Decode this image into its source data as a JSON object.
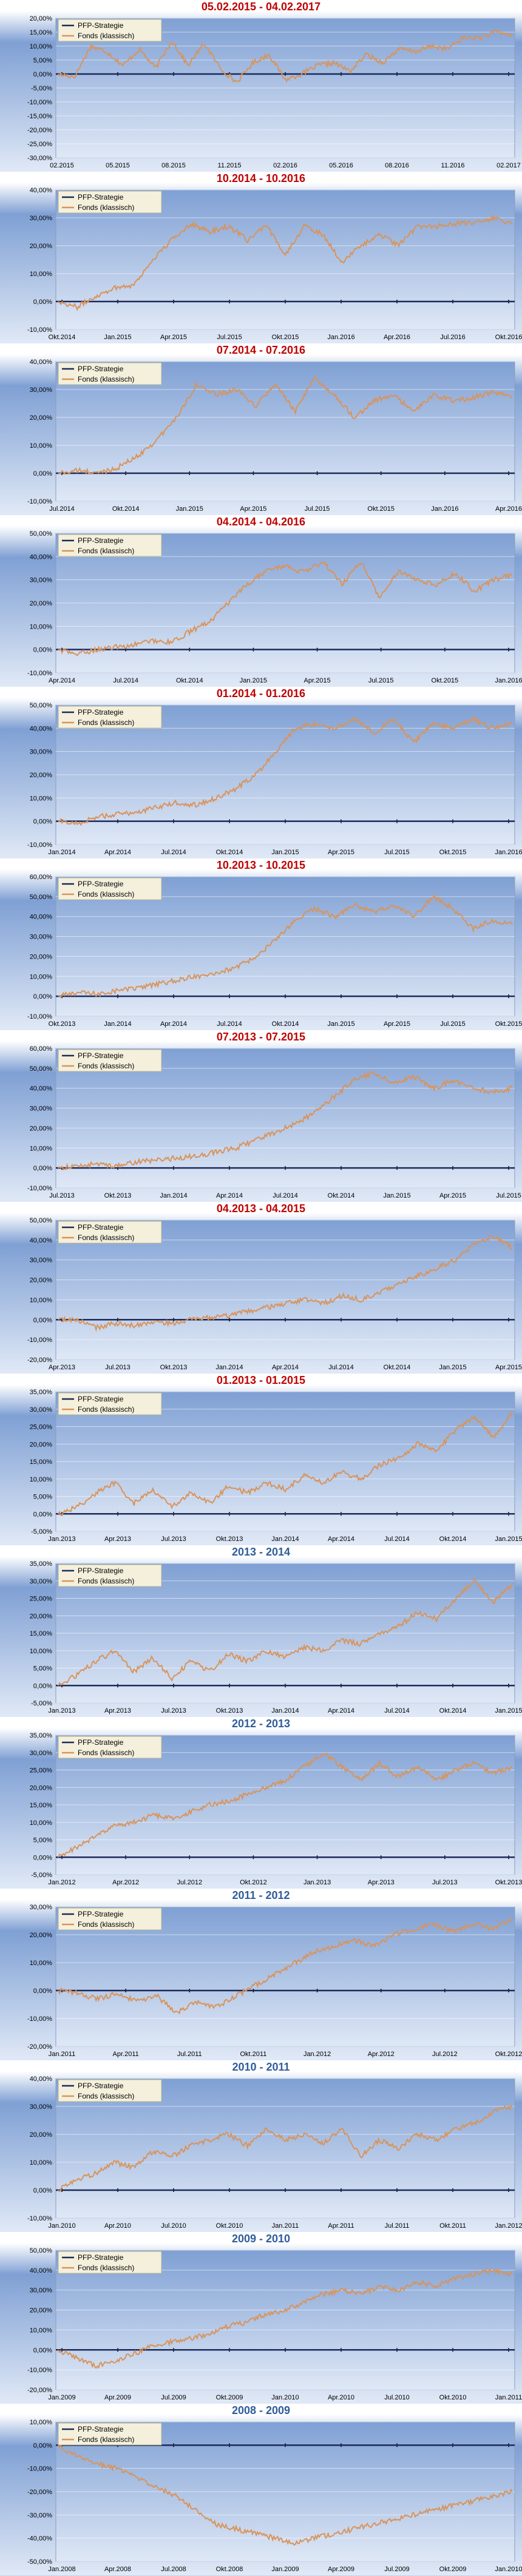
{
  "colors": {
    "title_red": "#c00000",
    "title_blue": "#2e5c9a",
    "fund_line": "#d9935a",
    "strategy_line": "#1a2a5a",
    "plot_top": "#7fa0d4",
    "plot_bottom": "#dfe8f6"
  },
  "legend": {
    "strategy": "PFP-Strategie",
    "fund": "Fonds (klassisch)"
  },
  "chart_data": [
    {
      "type": "line",
      "title": "05.02.2015 - 04.02.2017",
      "title_color": "red",
      "ylim": [
        -30,
        20
      ],
      "ystep": 5,
      "yticks": [
        "20,00%",
        "15,00%",
        "10,00%",
        "5,00%",
        "0,00%",
        "-5,00%",
        "-10,00%",
        "-15,00%",
        "-20,00%",
        "-25,00%",
        "-30,00%"
      ],
      "xticks": [
        "02.2015",
        "05.2015",
        "08.2015",
        "11.2015",
        "02.2016",
        "05.2016",
        "08.2016",
        "11.2016",
        "02.2017"
      ],
      "fund_keypoints": [
        0,
        -1,
        10,
        8,
        3,
        9,
        2,
        12,
        3,
        11,
        2,
        -3,
        4,
        7,
        -2,
        0,
        3,
        4,
        1,
        7,
        4,
        9,
        8,
        10,
        9,
        13,
        13,
        15,
        14
      ],
      "legend_position": "top-left",
      "grid": true
    },
    {
      "type": "line",
      "title": "10.2014 - 10.2016",
      "title_color": "red",
      "ylim": [
        -10,
        40
      ],
      "ystep": 10,
      "yticks": [
        "40,00%",
        "30,00%",
        "20,00%",
        "10,00%",
        "0,00%",
        "-10,00%"
      ],
      "xticks": [
        "Okt.2014",
        "Jan.2015",
        "Apr.2015",
        "Jul.2015",
        "Okt.2015",
        "Jan.2016",
        "Apr.2016",
        "Jul.2016",
        "Okt.2016"
      ],
      "fund_keypoints": [
        0,
        -2,
        2,
        5,
        6,
        15,
        22,
        28,
        25,
        27,
        22,
        27,
        17,
        27,
        24,
        14,
        20,
        24,
        20,
        27,
        27,
        28,
        28,
        30,
        28
      ],
      "legend_position": "top-left",
      "grid": true
    },
    {
      "type": "line",
      "title": "07.2014 - 07.2016",
      "title_color": "red",
      "ylim": [
        -10,
        40
      ],
      "ystep": 10,
      "yticks": [
        "40,00%",
        "30,00%",
        "20,00%",
        "10,00%",
        "0,00%",
        "-10,00%"
      ],
      "xticks": [
        "Jul.2014",
        "Okt.2014",
        "Jan.2015",
        "Apr.2015",
        "Jul.2015",
        "Okt.2015",
        "Jan.2016",
        "Apr.2016"
      ],
      "fund_keypoints": [
        0,
        1,
        0,
        2,
        6,
        12,
        20,
        32,
        28,
        30,
        24,
        32,
        22,
        34,
        28,
        20,
        26,
        28,
        22,
        28,
        26,
        27,
        29,
        27
      ],
      "legend_position": "top-left",
      "grid": true
    },
    {
      "type": "line",
      "title": "04.2014 - 04.2016",
      "title_color": "red",
      "ylim": [
        -10,
        50
      ],
      "ystep": 10,
      "yticks": [
        "50,00%",
        "40,00%",
        "30,00%",
        "20,00%",
        "10,00%",
        "0,00%",
        "-10,00%"
      ],
      "xticks": [
        "Apr.2014",
        "Jul.2014",
        "Okt.2014",
        "Jan.2015",
        "Apr.2015",
        "Jul.2015",
        "Okt.2015",
        "Jan.2016"
      ],
      "fund_keypoints": [
        0,
        -2,
        0,
        1,
        2,
        4,
        3,
        8,
        12,
        20,
        28,
        34,
        36,
        33,
        38,
        28,
        38,
        22,
        34,
        30,
        28,
        33,
        25,
        30,
        32
      ],
      "legend_position": "top-left",
      "grid": true
    },
    {
      "type": "line",
      "title": "01.2014 - 01.2016",
      "title_color": "red",
      "ylim": [
        -10,
        50
      ],
      "ystep": 10,
      "yticks": [
        "50,00%",
        "40,00%",
        "30,00%",
        "20,00%",
        "10,00%",
        "0,00%",
        "-10,00%"
      ],
      "xticks": [
        "Jan.2014",
        "Apr.2014",
        "Jul.2014",
        "Okt.2014",
        "Jan.2015",
        "Apr.2015",
        "Jul.2015",
        "Okt.2015",
        "Jan.2016"
      ],
      "fund_keypoints": [
        0,
        -1,
        2,
        3,
        4,
        6,
        8,
        7,
        10,
        14,
        20,
        30,
        40,
        42,
        40,
        44,
        38,
        44,
        34,
        42,
        40,
        44,
        40,
        42
      ],
      "legend_position": "top-left",
      "grid": true
    },
    {
      "type": "line",
      "title": "10.2013 - 10.2015",
      "title_color": "red",
      "ylim": [
        -10,
        60
      ],
      "ystep": 10,
      "yticks": [
        "60,00%",
        "50,00%",
        "40,00%",
        "30,00%",
        "20,00%",
        "10,00%",
        "0,00%",
        "-10,00%"
      ],
      "xticks": [
        "Okt.2013",
        "Jan.2014",
        "Apr.2014",
        "Jul.2014",
        "Okt.2014",
        "Jan.2015",
        "Apr.2015",
        "Jul.2015",
        "Okt.2015"
      ],
      "fund_keypoints": [
        0,
        2,
        1,
        3,
        4,
        6,
        8,
        10,
        12,
        14,
        20,
        28,
        38,
        44,
        40,
        46,
        42,
        46,
        40,
        50,
        44,
        34,
        38,
        36
      ],
      "legend_position": "top-left",
      "grid": true
    },
    {
      "type": "line",
      "title": "07.2013 - 07.2015",
      "title_color": "red",
      "ylim": [
        -10,
        60
      ],
      "ystep": 10,
      "yticks": [
        "60,00%",
        "50,00%",
        "40,00%",
        "30,00%",
        "20,00%",
        "10,00%",
        "0,00%",
        "-10,00%"
      ],
      "xticks": [
        "Jul.2013",
        "Okt.2013",
        "Jan.2014",
        "Apr.2014",
        "Jul.2014",
        "Okt.2014",
        "Jan.2015",
        "Apr.2015",
        "Jul.2015"
      ],
      "fund_keypoints": [
        0,
        1,
        2,
        1,
        3,
        4,
        5,
        6,
        8,
        10,
        14,
        18,
        22,
        28,
        36,
        44,
        48,
        42,
        46,
        40,
        44,
        40,
        38,
        40
      ],
      "legend_position": "top-left",
      "grid": true
    },
    {
      "type": "line",
      "title": "04.2013 - 04.2015",
      "title_color": "red",
      "ylim": [
        -20,
        50
      ],
      "ystep": 10,
      "yticks": [
        "50,00%",
        "40,00%",
        "30,00%",
        "20,00%",
        "10,00%",
        "0,00%",
        "-10,00%",
        "-20,00%"
      ],
      "xticks": [
        "Apr.2013",
        "Jul.2013",
        "Okt.2013",
        "Jan.2014",
        "Apr.2014",
        "Jul.2014",
        "Okt.2014",
        "Jan.2015",
        "Apr.2015"
      ],
      "fund_keypoints": [
        0,
        0,
        -4,
        -2,
        -3,
        -1,
        -2,
        0,
        1,
        2,
        4,
        6,
        8,
        10,
        8,
        12,
        10,
        14,
        18,
        22,
        26,
        30,
        38,
        42,
        36
      ],
      "legend_position": "top-left",
      "grid": true
    },
    {
      "type": "line",
      "title": "01.2013 - 01.2015",
      "title_color": "red",
      "ylim": [
        -5,
        35
      ],
      "ystep": 5,
      "yticks": [
        "35,00%",
        "30,00%",
        "25,00%",
        "20,00%",
        "15,00%",
        "10,00%",
        "5,00%",
        "0,00%",
        "-5,00%"
      ],
      "xticks": [
        "Jan.2013",
        "Apr.2013",
        "Jul.2013",
        "Okt.2013",
        "Jan.2014",
        "Apr.2014",
        "Jul.2014",
        "Okt.2014",
        "Jan.2015"
      ],
      "fund_keypoints": [
        0,
        2,
        6,
        9,
        3,
        7,
        2,
        6,
        3,
        8,
        6,
        9,
        7,
        11,
        9,
        12,
        10,
        14,
        16,
        20,
        18,
        24,
        28,
        22,
        29
      ],
      "legend_position": "top-left",
      "grid": true
    },
    {
      "type": "line",
      "title": "2013 - 2014",
      "title_color": "blue",
      "ylim": [
        -5,
        35
      ],
      "ystep": 5,
      "yticks": [
        "35,00%",
        "30,00%",
        "25,00%",
        "20,00%",
        "15,00%",
        "10,00%",
        "5,00%",
        "0,00%",
        "-5,00%"
      ],
      "xticks": [
        "Jan.2013",
        "Apr.2013",
        "Jul.2013",
        "Okt.2013",
        "Jan.2014",
        "Apr.2014",
        "Jul.2014",
        "Okt.2014",
        "Jan.2015"
      ],
      "fund_keypoints": [
        0,
        3,
        7,
        10,
        4,
        8,
        2,
        7,
        4,
        9,
        7,
        10,
        8,
        11,
        10,
        13,
        12,
        15,
        17,
        21,
        19,
        25,
        30,
        24,
        29
      ],
      "legend_position": "top-left",
      "grid": true
    },
    {
      "type": "line",
      "title": "2012 - 2013",
      "title_color": "blue",
      "ylim": [
        -5,
        35
      ],
      "ystep": 5,
      "yticks": [
        "35,00%",
        "30,00%",
        "25,00%",
        "20,00%",
        "15,00%",
        "10,00%",
        "5,00%",
        "0,00%",
        "-5,00%"
      ],
      "xticks": [
        "Jan.2012",
        "Apr.2012",
        "Jul.2012",
        "Okt.2012",
        "Jan.2013",
        "Apr.2013",
        "Jul.2013",
        "Okt.2013"
      ],
      "fund_keypoints": [
        0,
        3,
        6,
        9,
        10,
        12,
        11,
        13,
        15,
        16,
        18,
        20,
        22,
        26,
        30,
        26,
        22,
        27,
        23,
        26,
        22,
        25,
        27,
        24,
        26
      ],
      "legend_position": "top-left",
      "grid": true
    },
    {
      "type": "line",
      "title": "2011 - 2012",
      "title_color": "blue",
      "ylim": [
        -20,
        30
      ],
      "ystep": 10,
      "yticks": [
        "30,00%",
        "20,00%",
        "10,00%",
        "0,00%",
        "-10,00%",
        "-20,00%"
      ],
      "xticks": [
        "Jan.2011",
        "Apr.2011",
        "Jul.2011",
        "Okt.2011",
        "Jan.2012",
        "Apr.2012",
        "Jul.2012",
        "Okt.2012"
      ],
      "fund_keypoints": [
        0,
        -1,
        -3,
        -1,
        -4,
        -2,
        -8,
        -4,
        -6,
        -2,
        2,
        6,
        10,
        14,
        16,
        18,
        16,
        20,
        22,
        24,
        21,
        24,
        22,
        26
      ],
      "legend_position": "top-left",
      "grid": true
    },
    {
      "type": "line",
      "title": "2010 - 2011",
      "title_color": "blue",
      "ylim": [
        -10,
        40
      ],
      "ystep": 10,
      "yticks": [
        "40,00%",
        "30,00%",
        "20,00%",
        "10,00%",
        "0,00%",
        "-10,00%"
      ],
      "xticks": [
        "Jan.2010",
        "Apr.2010",
        "Jul.2010",
        "Okt.2010",
        "Jan.2011",
        "Apr.2011",
        "Jul.2011",
        "Okt.2011",
        "Jan.2012"
      ],
      "fund_keypoints": [
        0,
        4,
        6,
        10,
        8,
        14,
        12,
        16,
        18,
        20,
        16,
        22,
        18,
        20,
        17,
        22,
        12,
        18,
        15,
        20,
        18,
        22,
        24,
        28,
        30
      ],
      "legend_position": "top-left",
      "grid": true
    },
    {
      "type": "line",
      "title": "2009 - 2010",
      "title_color": "blue",
      "ylim": [
        -20,
        50
      ],
      "ystep": 10,
      "yticks": [
        "50,00%",
        "40,00%",
        "30,00%",
        "20,00%",
        "10,00%",
        "0,00%",
        "-10,00%",
        "-20,00%"
      ],
      "xticks": [
        "Jan.2009",
        "Apr.2009",
        "Jul.2009",
        "Okt.2009",
        "Jan.2010",
        "Apr.2010",
        "Jul.2010",
        "Okt.2010",
        "Jan.2011"
      ],
      "fund_keypoints": [
        0,
        -4,
        -8,
        -6,
        -2,
        2,
        4,
        6,
        8,
        12,
        14,
        18,
        20,
        24,
        28,
        30,
        28,
        32,
        30,
        34,
        32,
        36,
        38,
        40,
        38
      ],
      "legend_position": "top-left",
      "grid": true
    },
    {
      "type": "line",
      "title": "2008 - 2009",
      "title_color": "blue",
      "ylim": [
        -50,
        10
      ],
      "ystep": 10,
      "yticks": [
        "10,00%",
        "0,00%",
        "-10,00%",
        "-20,00%",
        "-30,00%",
        "-40,00%",
        "-50,00%"
      ],
      "xticks": [
        "Jan.2008",
        "Apr.2008",
        "Jul.2008",
        "Okt.2008",
        "Jan.2009",
        "Apr.2009",
        "Jul.2009",
        "Okt.2009",
        "Jan.2010"
      ],
      "fund_keypoints": [
        0,
        -5,
        -8,
        -10,
        -14,
        -18,
        -22,
        -28,
        -34,
        -36,
        -38,
        -40,
        -42,
        -40,
        -38,
        -36,
        -34,
        -32,
        -30,
        -28,
        -26,
        -24,
        -22,
        -20
      ],
      "legend_position": "top-left",
      "grid": true
    }
  ]
}
